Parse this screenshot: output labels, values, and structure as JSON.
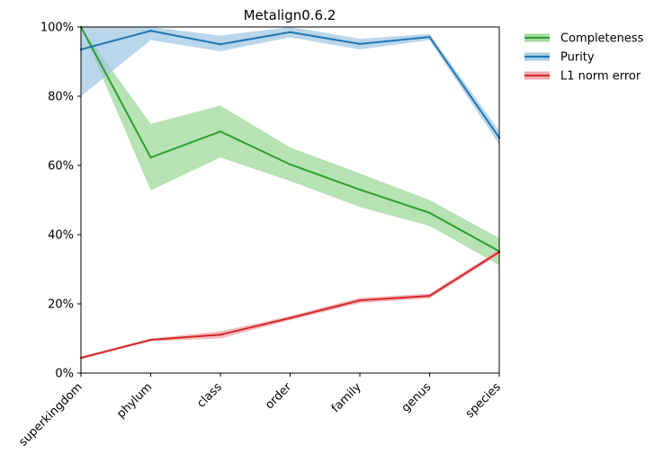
{
  "chart_data": {
    "type": "line",
    "title": "Metalign0.6.2",
    "categories": [
      "superkingdom",
      "phylum",
      "class",
      "order",
      "family",
      "genus",
      "species"
    ],
    "ylim": [
      0,
      100
    ],
    "yticks": [
      0,
      20,
      40,
      60,
      80,
      100
    ],
    "ytick_labels": [
      "0%",
      "20%",
      "40%",
      "60%",
      "80%",
      "100%"
    ],
    "grid": false,
    "legend_position": "outside-top-right",
    "series": [
      {
        "name": "Completeness",
        "color": "#2ca02c",
        "band_color": "#98d594",
        "values": [
          100,
          62.3,
          69.8,
          60.3,
          53.0,
          46.3,
          35.2
        ],
        "lower": [
          100,
          52.8,
          62.3,
          55.5,
          48.0,
          42.5,
          31.2
        ],
        "upper": [
          100,
          72.0,
          77.3,
          65.2,
          57.7,
          50.0,
          39.0
        ]
      },
      {
        "name": "Purity",
        "color": "#1f77b4",
        "band_color": "#9dc4e3",
        "values": [
          93.5,
          98.9,
          95.0,
          98.5,
          95.1,
          97.1,
          68.0
        ],
        "lower": [
          80.0,
          96.2,
          93.0,
          97.0,
          93.5,
          96.2,
          66.0
        ],
        "upper": [
          100,
          100,
          97.5,
          100,
          96.6,
          98.0,
          70.0
        ]
      },
      {
        "name": "L1 norm error",
        "color": "#d62728",
        "band_color": "#f0a3a4",
        "values": [
          4.4,
          9.6,
          11.1,
          15.9,
          21.0,
          22.3,
          35.0
        ],
        "lower": [
          4.0,
          9.2,
          10.0,
          15.3,
          20.2,
          21.6,
          34.3
        ],
        "upper": [
          4.8,
          10.0,
          12.1,
          16.5,
          21.8,
          23.0,
          35.7
        ]
      }
    ]
  }
}
